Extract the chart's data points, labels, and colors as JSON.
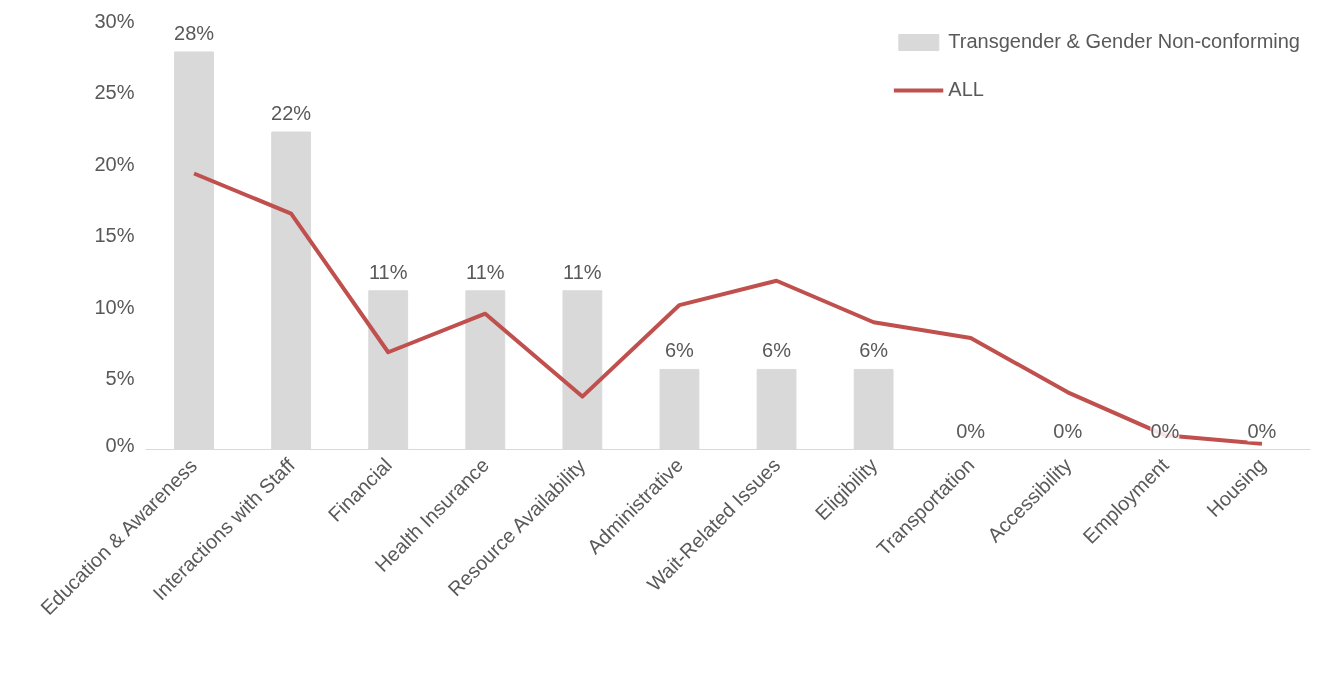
{
  "chart_data": {
    "type": "bar",
    "categories": [
      "Education & Awareness",
      "Interactions with Staff",
      "Financial",
      "Health Insurance",
      "Resource Availability",
      "Administrative",
      "Wait-Related Issues",
      "Eligibility",
      "Transportation",
      "Accessibility",
      "Employment",
      "Housing"
    ],
    "series": [
      {
        "name": "Transgender & Gender Non-conforming",
        "color": "#d9d9d9",
        "values": [
          27.8,
          22.2,
          11.1,
          11.1,
          11.1,
          5.6,
          5.6,
          5.6,
          0,
          0,
          0,
          0
        ],
        "value_labels": [
          "28%",
          "22%",
          "11%",
          "11%",
          "11%",
          "6%",
          "6%",
          "6%",
          "0%",
          "0%",
          "0%",
          "0%"
        ]
      },
      {
        "name": "ALL",
        "type": "line",
        "color": "#c0504d",
        "values": [
          19.3,
          16.5,
          6.8,
          9.5,
          3.7,
          10.1,
          11.8,
          8.9,
          7.8,
          4.0,
          1.0,
          0.4
        ]
      }
    ],
    "ylim": [
      0,
      30
    ],
    "yticks": [
      {
        "value": 0,
        "label": "0%"
      },
      {
        "value": 5,
        "label": "5%"
      },
      {
        "value": 10,
        "label": "10%"
      },
      {
        "value": 15,
        "label": "15%"
      },
      {
        "value": 20,
        "label": "20%"
      },
      {
        "value": 25,
        "label": "25%"
      },
      {
        "value": 30,
        "label": "30%"
      }
    ],
    "grid": false,
    "legend": "top right",
    "marker": "none",
    "line_style": "solid"
  }
}
